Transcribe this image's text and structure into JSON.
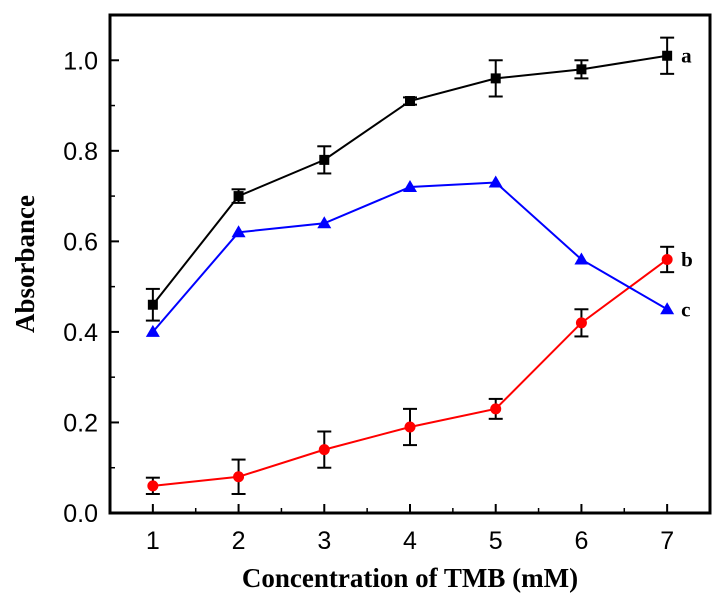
{
  "chart_data": {
    "type": "line",
    "title": "",
    "xlabel": "Concentration of TMB (mM)",
    "ylabel": "Absorbance",
    "xlim": [
      0.5,
      7.5
    ],
    "ylim": [
      0,
      1.1
    ],
    "xticks": [
      "1",
      "2",
      "3",
      "4",
      "5",
      "6",
      "7"
    ],
    "yticks": [
      "0.0",
      "0.2",
      "0.4",
      "0.6",
      "0.8",
      "1.0"
    ],
    "grid": false,
    "legend": "none",
    "series": [
      {
        "name": "a",
        "color": "#000000",
        "marker": "square",
        "x": [
          1,
          2,
          3,
          4,
          5,
          6,
          7
        ],
        "values": [
          0.46,
          0.7,
          0.78,
          0.91,
          0.96,
          0.98,
          1.01
        ],
        "errors": [
          0.035,
          0.015,
          0.03,
          0.008,
          0.04,
          0.02,
          0.04
        ]
      },
      {
        "name": "b",
        "color": "#ff0000",
        "marker": "circle",
        "x": [
          1,
          2,
          3,
          4,
          5,
          6,
          7
        ],
        "values": [
          0.06,
          0.08,
          0.14,
          0.19,
          0.23,
          0.42,
          0.56
        ],
        "errors": [
          0.018,
          0.038,
          0.04,
          0.04,
          0.022,
          0.03,
          0.028
        ]
      },
      {
        "name": "c",
        "color": "#0000ff",
        "marker": "triangle",
        "x": [
          1,
          2,
          3,
          4,
          5,
          6,
          7
        ],
        "values": [
          0.4,
          0.62,
          0.64,
          0.72,
          0.73,
          0.56,
          0.45
        ],
        "errors": [
          0,
          0,
          0,
          0,
          0,
          0,
          0
        ]
      }
    ]
  }
}
